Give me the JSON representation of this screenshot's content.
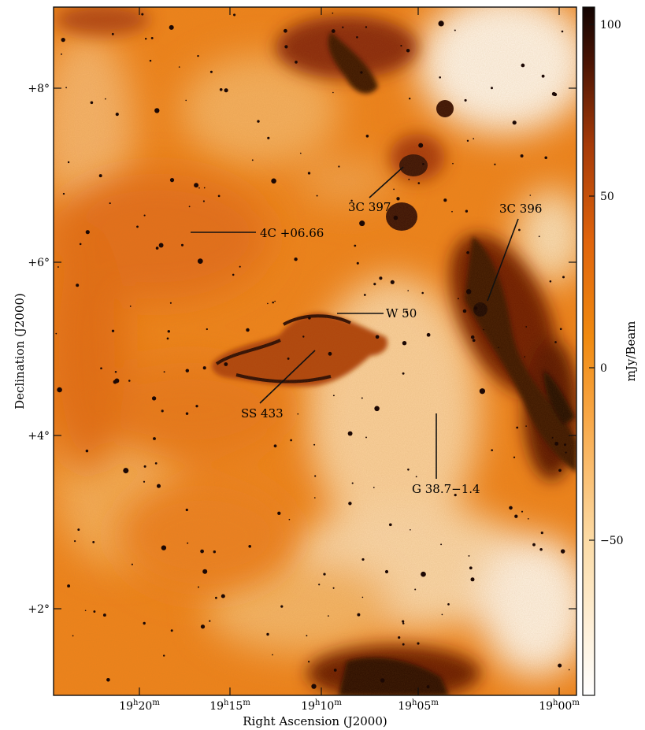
{
  "figure": {
    "x_axis_label": "Right Ascension (J2000)",
    "y_axis_label": "Declination (J2000)",
    "colorbar_label": "mJy/Beam",
    "ra_ticks": [
      {
        "h": "19",
        "m": "20"
      },
      {
        "h": "19",
        "m": "15"
      },
      {
        "h": "19",
        "m": "10"
      },
      {
        "h": "19",
        "m": "05"
      },
      {
        "h": "19",
        "m": "00"
      }
    ],
    "dec_ticks": [
      "+8°",
      "+6°",
      "+4°",
      "+2°"
    ],
    "colorbar_ticks": [
      "100",
      "50",
      "0",
      "−50"
    ],
    "labels": {
      "src_4c": "4C +06.66",
      "src_3c397": "3C 397",
      "src_3c396": "3C 396",
      "src_w50": "W 50",
      "src_ss433": "SS 433",
      "src_g38": "G 38.7−1.4"
    },
    "colors": {
      "background_orange": "#f0841c",
      "light_region": "#fde6c4",
      "dark_emission": "#3a1206",
      "frame": "#111111"
    }
  }
}
